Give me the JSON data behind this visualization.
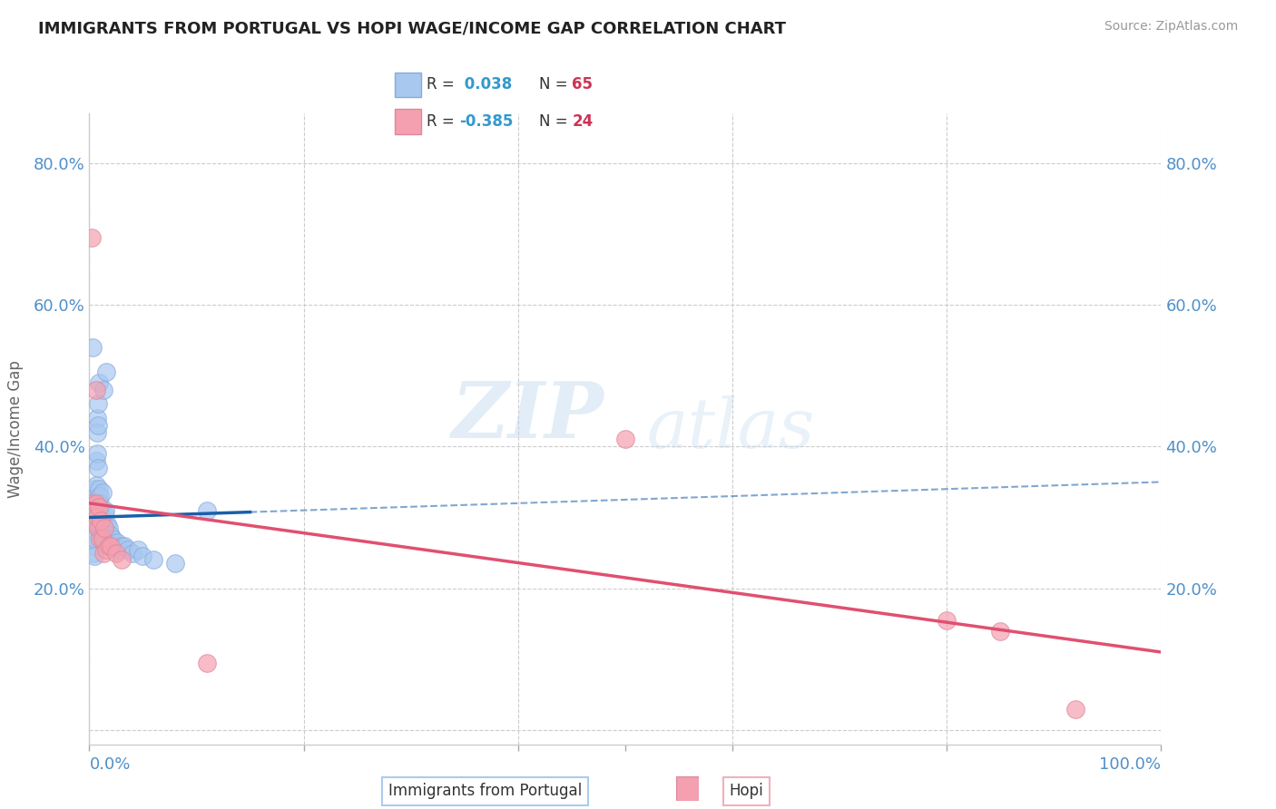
{
  "title": "IMMIGRANTS FROM PORTUGAL VS HOPI WAGE/INCOME GAP CORRELATION CHART",
  "source": "Source: ZipAtlas.com",
  "ylabel": "Wage/Income Gap",
  "xlim": [
    0,
    1.0
  ],
  "ylim": [
    -0.02,
    0.87
  ],
  "yticks": [
    0.0,
    0.2,
    0.4,
    0.6,
    0.8
  ],
  "yticklabels": [
    "",
    "20.0%",
    "40.0%",
    "60.0%",
    "80.0%"
  ],
  "blue_R": 0.038,
  "blue_N": 65,
  "pink_R": -0.385,
  "pink_N": 24,
  "blue_color": "#a8c8f0",
  "pink_color": "#f5a0b0",
  "blue_line_color": "#1a5fa8",
  "pink_line_color": "#e05070",
  "blue_scatter_x": [
    0.002,
    0.003,
    0.003,
    0.004,
    0.004,
    0.004,
    0.005,
    0.005,
    0.005,
    0.005,
    0.005,
    0.006,
    0.006,
    0.006,
    0.006,
    0.007,
    0.007,
    0.007,
    0.007,
    0.008,
    0.008,
    0.008,
    0.008,
    0.009,
    0.009,
    0.009,
    0.01,
    0.01,
    0.01,
    0.01,
    0.011,
    0.011,
    0.012,
    0.012,
    0.013,
    0.013,
    0.013,
    0.014,
    0.014,
    0.015,
    0.015,
    0.016,
    0.017,
    0.017,
    0.018,
    0.019,
    0.02,
    0.021,
    0.022,
    0.024,
    0.026,
    0.028,
    0.03,
    0.033,
    0.036,
    0.04,
    0.045,
    0.05,
    0.06,
    0.08,
    0.003,
    0.009,
    0.013,
    0.016,
    0.11
  ],
  "blue_scatter_y": [
    0.315,
    0.295,
    0.275,
    0.285,
    0.26,
    0.25,
    0.34,
    0.3,
    0.28,
    0.27,
    0.245,
    0.38,
    0.345,
    0.32,
    0.29,
    0.44,
    0.42,
    0.39,
    0.31,
    0.46,
    0.43,
    0.37,
    0.33,
    0.34,
    0.315,
    0.295,
    0.33,
    0.32,
    0.3,
    0.28,
    0.31,
    0.295,
    0.335,
    0.3,
    0.295,
    0.28,
    0.265,
    0.305,
    0.285,
    0.31,
    0.285,
    0.27,
    0.29,
    0.275,
    0.285,
    0.27,
    0.275,
    0.265,
    0.27,
    0.26,
    0.265,
    0.255,
    0.26,
    0.26,
    0.255,
    0.25,
    0.255,
    0.245,
    0.24,
    0.235,
    0.54,
    0.49,
    0.48,
    0.505,
    0.31
  ],
  "pink_scatter_x": [
    0.002,
    0.003,
    0.003,
    0.005,
    0.006,
    0.006,
    0.007,
    0.008,
    0.009,
    0.01,
    0.011,
    0.012,
    0.013,
    0.014,
    0.016,
    0.018,
    0.02,
    0.025,
    0.03,
    0.11,
    0.5,
    0.8,
    0.85,
    0.92
  ],
  "pink_scatter_y": [
    0.695,
    0.32,
    0.295,
    0.31,
    0.48,
    0.32,
    0.3,
    0.285,
    0.315,
    0.27,
    0.295,
    0.27,
    0.25,
    0.285,
    0.255,
    0.26,
    0.26,
    0.25,
    0.24,
    0.095,
    0.41,
    0.155,
    0.14,
    0.03
  ],
  "watermark_zip": "ZIP",
  "watermark_atlas": "atlas",
  "background_color": "#ffffff",
  "grid_color": "#cccccc",
  "axis_color": "#5090c8",
  "title_color": "#222222",
  "legend_R_color": "#3399cc",
  "legend_N_color": "#cc3355",
  "bottom_label_blue": "Immigrants from Portugal",
  "bottom_label_pink": "Hopi"
}
